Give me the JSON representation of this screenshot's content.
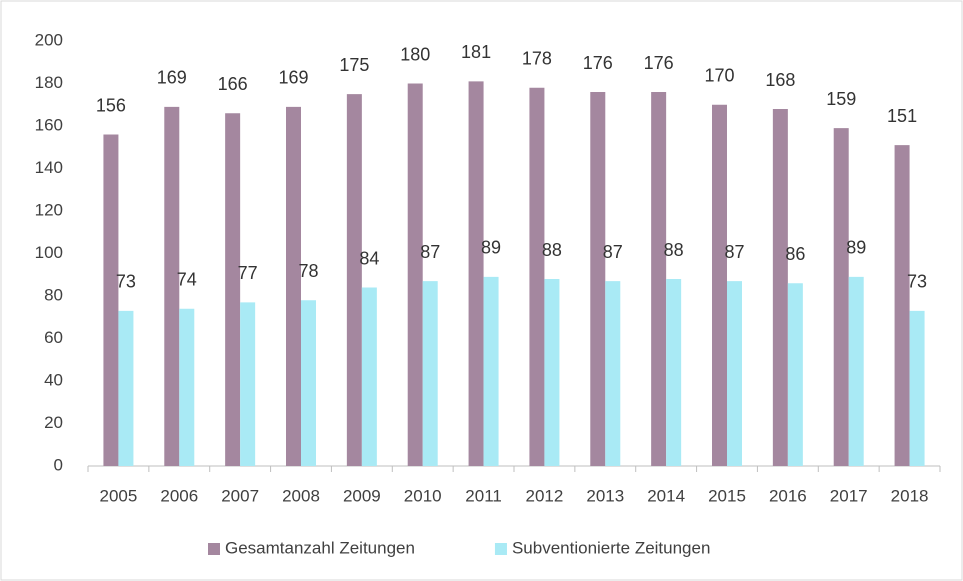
{
  "chart_data": {
    "type": "bar",
    "categories": [
      "2005",
      "2006",
      "2007",
      "2008",
      "2009",
      "2010",
      "2011",
      "2012",
      "2013",
      "2014",
      "2015",
      "2016",
      "2017",
      "2018"
    ],
    "series": [
      {
        "name": "Gesamtanzahl Zeitungen",
        "color": "#a4879f",
        "values": [
          156,
          169,
          166,
          169,
          175,
          180,
          181,
          178,
          176,
          176,
          170,
          168,
          159,
          151
        ]
      },
      {
        "name": "Subventionierte Zeitungen",
        "color": "#a9eaf5",
        "values": [
          73,
          74,
          77,
          78,
          84,
          87,
          89,
          88,
          87,
          88,
          87,
          86,
          89,
          73
        ]
      }
    ],
    "ylim": [
      0,
      200
    ],
    "yticks": [
      0,
      20,
      40,
      60,
      80,
      100,
      120,
      140,
      160,
      180,
      200
    ],
    "grid": false,
    "legend": "bottom"
  }
}
